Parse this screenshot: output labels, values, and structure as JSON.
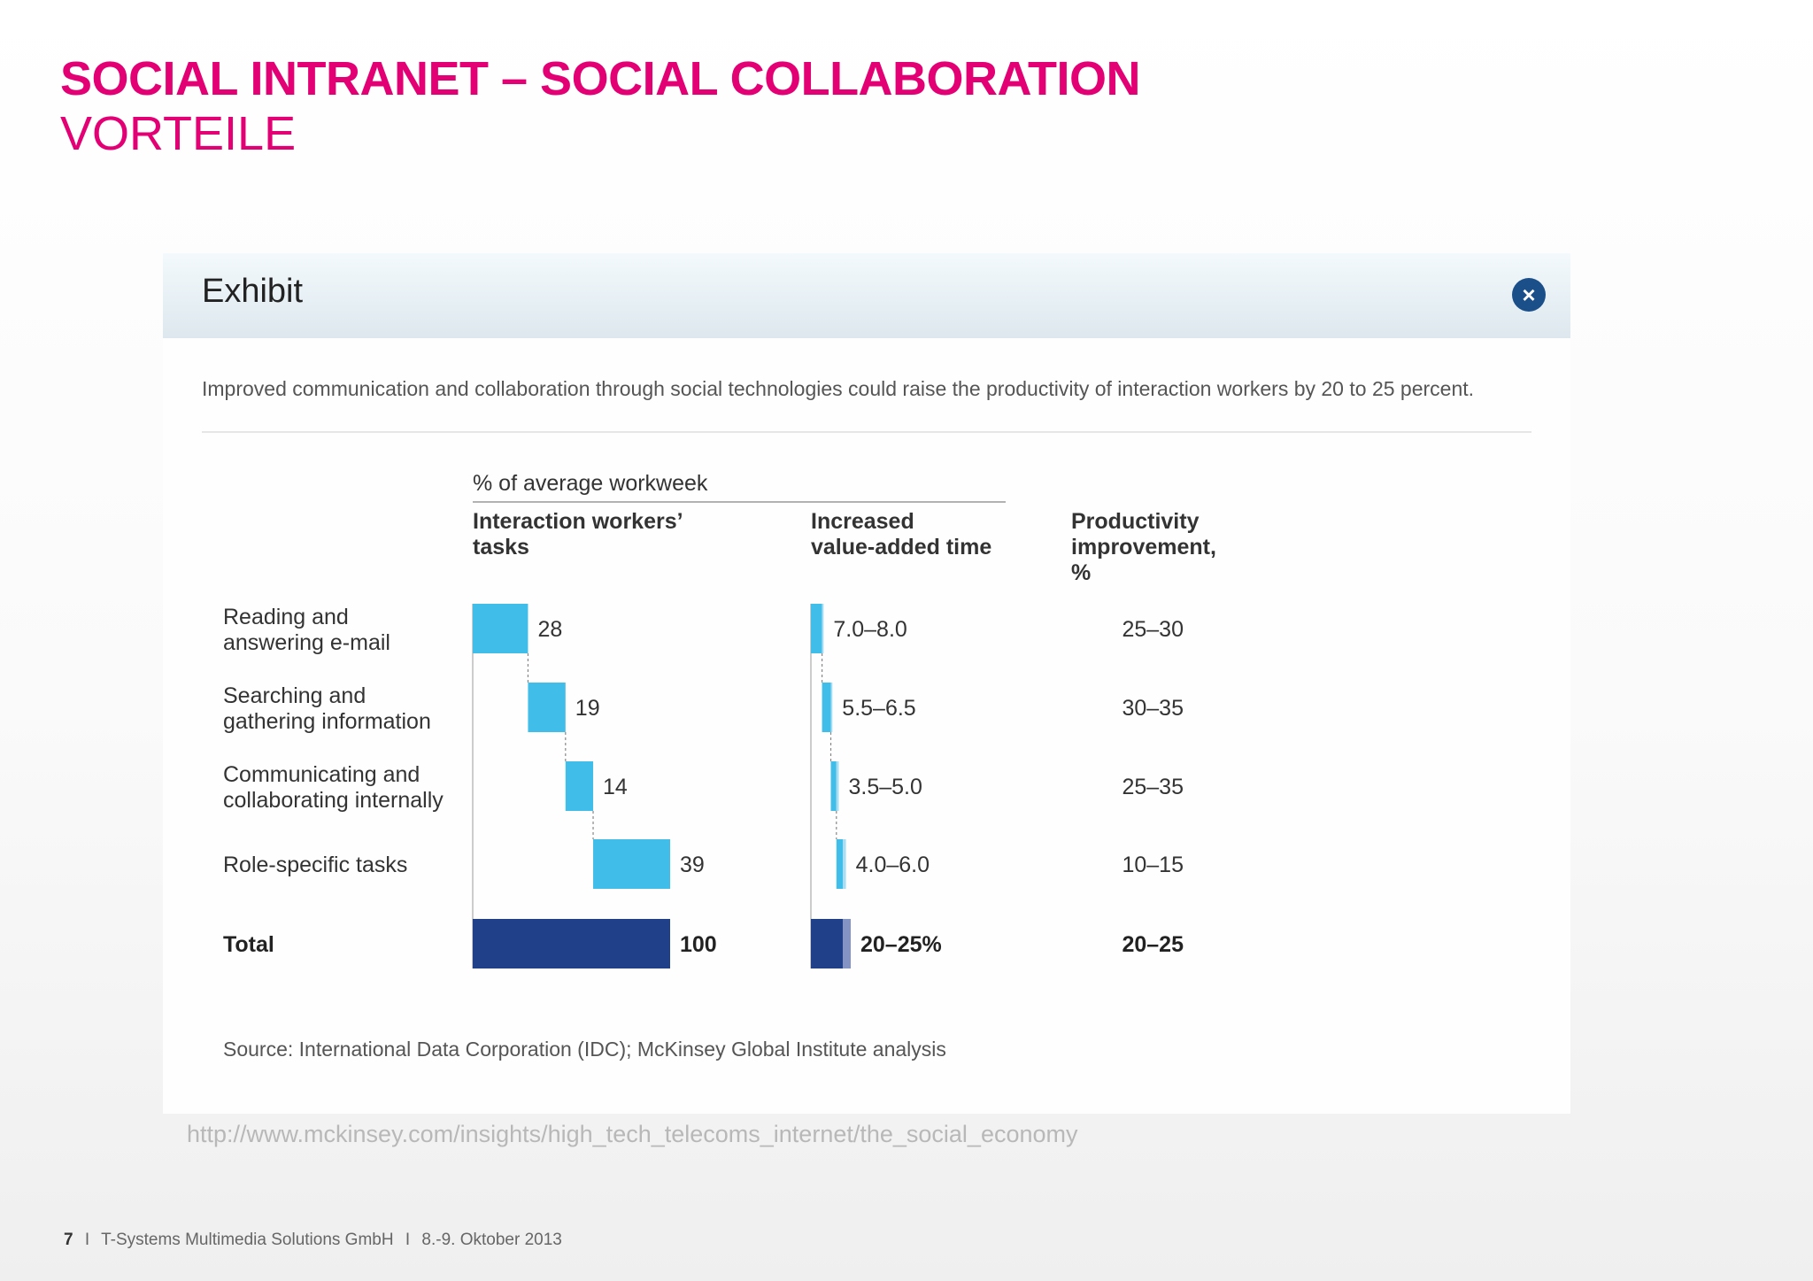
{
  "slide": {
    "title": "SOCIAL INTRANET – SOCIAL COLLABORATION",
    "subtitle": "VORTEILE"
  },
  "exhibit": {
    "header": "Exhibit",
    "close_icon": "close-icon",
    "description": "Improved communication and collaboration through social technologies could raise the productivity of interaction workers by 20 to 25 percent."
  },
  "chart_data": {
    "type": "bar",
    "group_header": "% of average workweek",
    "column_headers": {
      "tasks": [
        "Interaction workers’",
        "tasks"
      ],
      "value_added": [
        "Increased",
        "value-added time"
      ],
      "productivity": [
        "Productivity",
        "improvement,",
        "%"
      ]
    },
    "rows": [
      {
        "label": [
          "Reading and",
          "answering e-mail"
        ],
        "tasks": 28,
        "value_added": "7.0–8.0",
        "value_added_range": [
          7.0,
          8.0
        ],
        "productivity": "25–30"
      },
      {
        "label": [
          "Searching and",
          "gathering information"
        ],
        "tasks": 19,
        "value_added": "5.5–6.5",
        "value_added_range": [
          5.5,
          6.5
        ],
        "productivity": "30–35"
      },
      {
        "label": [
          "Communicating and",
          "collaborating internally"
        ],
        "tasks": 14,
        "value_added": "3.5–5.0",
        "value_added_range": [
          3.5,
          5.0
        ],
        "productivity": "25–35"
      },
      {
        "label": [
          "Role-specific tasks"
        ],
        "tasks": 39,
        "value_added": "4.0–6.0",
        "value_added_range": [
          4.0,
          6.0
        ],
        "productivity": "10–15"
      }
    ],
    "total": {
      "label": "Total",
      "tasks": 100,
      "value_added": "20–25%",
      "value_added_range": [
        20,
        25
      ],
      "productivity": "20–25"
    },
    "colors": {
      "bar": "#41bde9",
      "total": "#21408a",
      "total_light": "#8394c4"
    },
    "source": "Source: International Data Corporation (IDC); McKinsey Global Institute analysis"
  },
  "source_url": "http://www.mckinsey.com/insights/high_tech_telecoms_internet/the_social_economy",
  "footer": {
    "page_number": "7",
    "separator": "I",
    "company": "T-Systems Multimedia Solutions GmbH",
    "date": "8.-9. Oktober 2013"
  }
}
